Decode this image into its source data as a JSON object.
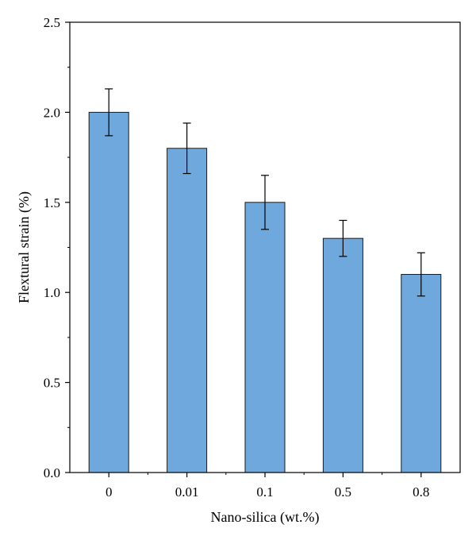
{
  "chart_data": {
    "type": "bar",
    "xlabel": "Nano-silica (wt.%)",
    "ylabel": "Flextural strain (%)",
    "categories": [
      "0",
      "0.01",
      "0.1",
      "0.5",
      "0.8"
    ],
    "values": [
      2.0,
      1.8,
      1.5,
      1.3,
      1.1
    ],
    "error": [
      0.13,
      0.14,
      0.15,
      0.1,
      0.12
    ],
    "ylim": [
      0,
      2.5
    ],
    "yticks": [
      "0.0",
      "0.5",
      "1.0",
      "1.5",
      "2.0",
      "2.5"
    ],
    "grid": false,
    "bar_color": "#6fa8dc",
    "bar_edge_color": "#1a1a1a"
  }
}
